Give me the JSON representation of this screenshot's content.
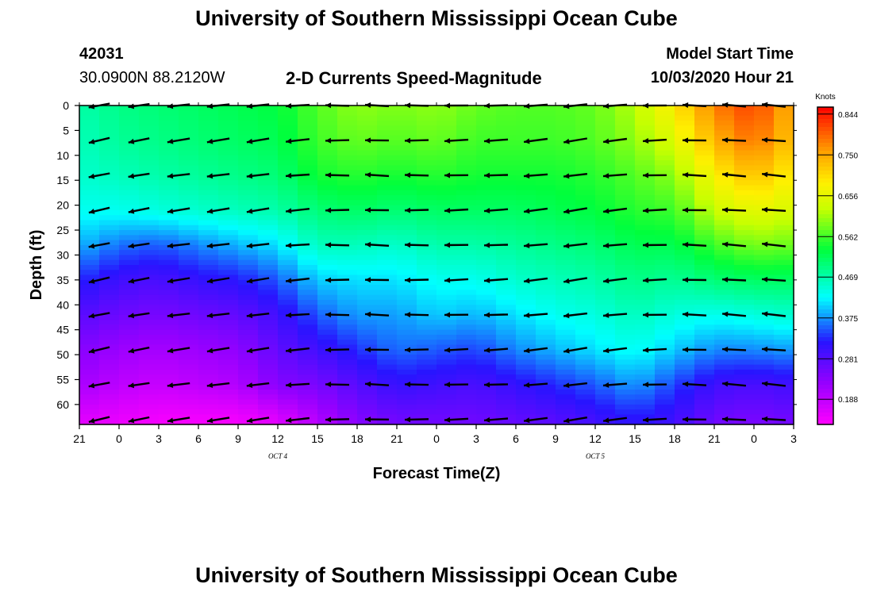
{
  "page": {
    "title_top": "University of Southern Mississippi Ocean Cube",
    "title_bottom": "University of Southern Mississippi Ocean Cube",
    "station_id": "42031",
    "station_coords": "30.0900N 88.2120W",
    "subtitle": "2-D Currents Speed-Magnitude",
    "model_label": "Model Start Time",
    "model_time": "10/03/2020 Hour 21"
  },
  "chart_data": {
    "type": "heatmap",
    "title": "2-D Currents Speed-Magnitude",
    "xlabel": "Forecast Time(Z)",
    "ylabel": "Depth (ft)",
    "x_ticks": [
      "21",
      "0",
      "3",
      "6",
      "9",
      "12",
      "15",
      "18",
      "21",
      "0",
      "3",
      "6",
      "9",
      "12",
      "15",
      "18",
      "21",
      "0",
      "3"
    ],
    "x_date_labels": [
      {
        "label": "OCT 4",
        "at_tick": 5
      },
      {
        "label": "OCT 5",
        "at_tick": 13
      }
    ],
    "y_ticks": [
      0,
      5,
      10,
      15,
      20,
      25,
      30,
      35,
      40,
      45,
      50,
      55,
      60
    ],
    "ylim": [
      0,
      64
    ],
    "colorbar": {
      "label": "Knots",
      "ticks": [
        "0.844",
        "0.750",
        "0.656",
        "0.562",
        "0.469",
        "0.375",
        "0.281",
        "0.188"
      ],
      "range": [
        0.13,
        0.86
      ]
    },
    "columns_per_tick": 2,
    "depth_rows": [
      0,
      7,
      14,
      21,
      28,
      35,
      42,
      49,
      56,
      63
    ],
    "column_speed_profiles": [
      [
        0.47,
        0.46,
        0.45,
        0.43,
        0.39,
        0.33,
        0.28,
        0.24,
        0.21,
        0.16
      ],
      [
        0.49,
        0.48,
        0.46,
        0.43,
        0.36,
        0.3,
        0.26,
        0.22,
        0.19,
        0.15
      ],
      [
        0.5,
        0.49,
        0.47,
        0.44,
        0.35,
        0.29,
        0.25,
        0.21,
        0.18,
        0.14
      ],
      [
        0.51,
        0.5,
        0.48,
        0.45,
        0.37,
        0.31,
        0.26,
        0.22,
        0.19,
        0.14
      ],
      [
        0.52,
        0.51,
        0.49,
        0.46,
        0.39,
        0.32,
        0.27,
        0.23,
        0.2,
        0.14
      ],
      [
        0.53,
        0.52,
        0.5,
        0.47,
        0.41,
        0.35,
        0.3,
        0.27,
        0.24,
        0.16
      ],
      [
        0.57,
        0.56,
        0.54,
        0.5,
        0.46,
        0.4,
        0.35,
        0.3,
        0.25,
        0.2
      ],
      [
        0.6,
        0.58,
        0.55,
        0.51,
        0.46,
        0.41,
        0.38,
        0.33,
        0.28,
        0.24
      ],
      [
        0.59,
        0.57,
        0.54,
        0.5,
        0.45,
        0.41,
        0.38,
        0.36,
        0.31,
        0.26
      ],
      [
        0.6,
        0.58,
        0.55,
        0.51,
        0.47,
        0.43,
        0.4,
        0.35,
        0.3,
        0.26
      ],
      [
        0.58,
        0.56,
        0.54,
        0.51,
        0.47,
        0.43,
        0.39,
        0.34,
        0.29,
        0.26
      ],
      [
        0.57,
        0.56,
        0.54,
        0.51,
        0.48,
        0.45,
        0.41,
        0.37,
        0.31,
        0.27
      ],
      [
        0.57,
        0.56,
        0.54,
        0.52,
        0.49,
        0.46,
        0.43,
        0.39,
        0.33,
        0.28
      ],
      [
        0.58,
        0.57,
        0.55,
        0.53,
        0.5,
        0.47,
        0.44,
        0.41,
        0.35,
        0.3
      ],
      [
        0.62,
        0.6,
        0.57,
        0.55,
        0.52,
        0.49,
        0.46,
        0.43,
        0.38,
        0.32
      ],
      [
        0.69,
        0.65,
        0.6,
        0.56,
        0.52,
        0.48,
        0.44,
        0.4,
        0.34,
        0.3
      ],
      [
        0.78,
        0.74,
        0.68,
        0.63,
        0.56,
        0.5,
        0.43,
        0.37,
        0.3,
        0.26
      ],
      [
        0.82,
        0.79,
        0.73,
        0.66,
        0.59,
        0.51,
        0.44,
        0.37,
        0.29,
        0.25
      ],
      [
        0.74,
        0.72,
        0.68,
        0.64,
        0.58,
        0.51,
        0.45,
        0.38,
        0.3,
        0.26
      ]
    ],
    "arrow_columns": [
      {
        "dir_deg": 192,
        "len": 0.9
      },
      {
        "dir_deg": 190,
        "len": 0.9
      },
      {
        "dir_deg": 188,
        "len": 0.95
      },
      {
        "dir_deg": 188,
        "len": 0.95
      },
      {
        "dir_deg": 188,
        "len": 0.95
      },
      {
        "dir_deg": 185,
        "len": 1.0
      },
      {
        "dir_deg": 180,
        "len": 1.0
      },
      {
        "dir_deg": 178,
        "len": 1.0
      },
      {
        "dir_deg": 180,
        "len": 1.0
      },
      {
        "dir_deg": 182,
        "len": 1.0
      },
      {
        "dir_deg": 183,
        "len": 1.0
      },
      {
        "dir_deg": 186,
        "len": 1.0
      },
      {
        "dir_deg": 188,
        "len": 1.0
      },
      {
        "dir_deg": 186,
        "len": 1.0
      },
      {
        "dir_deg": 182,
        "len": 1.0
      },
      {
        "dir_deg": 178,
        "len": 1.0
      },
      {
        "dir_deg": 176,
        "len": 1.0
      },
      {
        "dir_deg": 175,
        "len": 1.0
      },
      {
        "dir_deg": 176,
        "len": 1.0
      }
    ]
  }
}
